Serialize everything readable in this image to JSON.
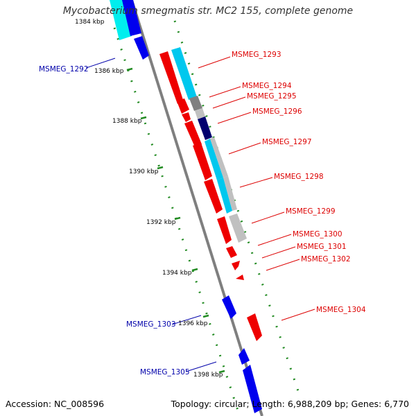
{
  "title": "Mycobacterium smegmatis str. MC2 155, complete genome",
  "footer": {
    "accession": "Accession: NC_008596",
    "summary": "Topology: circular; Length: 6,988,209 bp; Genes: 6,770"
  },
  "colors": {
    "backbone": "#7f7f7f",
    "ticks": "#228b22",
    "forward_label": "#dd0000",
    "reverse_label": "#0000aa",
    "feature_red": "#ee0000",
    "feature_blue": "#0000ee",
    "feature_navy": "#00006e",
    "feature_cyan": "#00c8ee",
    "feature_aqua": "#00eeee",
    "feature_lightgray": "#c0c0c0",
    "feature_gray": "#808080"
  },
  "scale_labels": [
    "1384 kbp",
    "1386 kbp",
    "1388 kbp",
    "1390 kbp",
    "1392 kbp",
    "1394 kbp",
    "1396 kbp",
    "1398 kbp"
  ],
  "gene_labels": [
    {
      "text": "MSMEG_1292",
      "strand": "reverse"
    },
    {
      "text": "MSMEG_1293",
      "strand": "forward"
    },
    {
      "text": "MSMEG_1294",
      "strand": "forward"
    },
    {
      "text": "MSMEG_1295",
      "strand": "forward"
    },
    {
      "text": "MSMEG_1296",
      "strand": "forward"
    },
    {
      "text": "MSMEG_1297",
      "strand": "forward"
    },
    {
      "text": "MSMEG_1298",
      "strand": "forward"
    },
    {
      "text": "MSMEG_1299",
      "strand": "forward"
    },
    {
      "text": "MSMEG_1300",
      "strand": "forward"
    },
    {
      "text": "MSMEG_1301",
      "strand": "forward"
    },
    {
      "text": "MSMEG_1302",
      "strand": "forward"
    },
    {
      "text": "MSMEG_1303",
      "strand": "reverse"
    },
    {
      "text": "MSMEG_1304",
      "strand": "forward"
    },
    {
      "text": "MSMEG_1305",
      "strand": "reverse"
    }
  ]
}
